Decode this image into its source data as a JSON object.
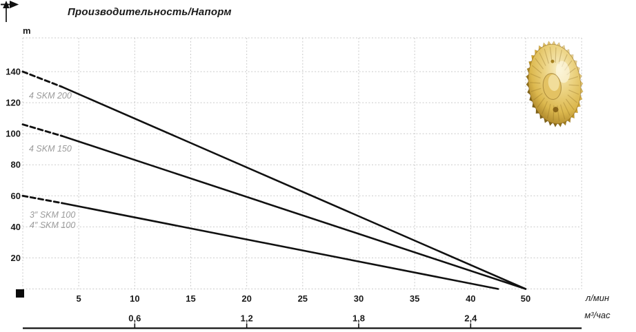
{
  "title": "Производительность/Напорм",
  "y_axis": {
    "unit_label": "m",
    "tick_labels": [
      "140",
      "120",
      "100",
      "80",
      "60",
      "40",
      "20"
    ]
  },
  "x_axis_primary": {
    "unit_label": "л/мин",
    "tick_labels": [
      "5",
      "10",
      "15",
      "20",
      "25",
      "30",
      "35",
      "40",
      "50"
    ]
  },
  "x_axis_secondary": {
    "unit_label": "м³/час",
    "tick_labels": [
      "0,6",
      "1,2",
      "1,8",
      "2,4"
    ]
  },
  "curve_labels": [
    "4 SKM 200",
    "4 SKM 150",
    "3″ SKM 100",
    "4″ SKM 100"
  ],
  "colors": {
    "curve": "#111111",
    "grid": "#c9c9c9",
    "curve_label_gray": "#9b9b9b",
    "text": "#1a1a1a",
    "axis_line": "#111111",
    "impeller_light": "#f8eec6",
    "impeller_mid": "#dcb84e",
    "impeller_dark": "#9b741d"
  },
  "chart_data": {
    "type": "line",
    "title": "Производительность/Напорм",
    "ylabel": "m",
    "xlabel_primary": "л/мин",
    "xlabel_secondary": "м³/час",
    "y_ticks": [
      140,
      120,
      100,
      80,
      60,
      40,
      20
    ],
    "x_ticks_l_min": [
      5,
      10,
      15,
      20,
      25,
      30,
      35,
      40,
      50
    ],
    "x_ticks_m3_h": [
      0.6,
      1.2,
      1.8,
      2.4
    ],
    "ylim_m": [
      0,
      160
    ],
    "grid": true,
    "series": [
      {
        "name": "4 SKM 200",
        "style": "dashed-then-solid",
        "dash_until_l_min": 3.5,
        "points_l_min_vs_m": [
          [
            0,
            140
          ],
          [
            50,
            0
          ]
        ]
      },
      {
        "name": "4 SKM 150",
        "style": "dashed-then-solid",
        "dash_until_l_min": 3.5,
        "points_l_min_vs_m": [
          [
            0,
            106
          ],
          [
            50,
            0
          ]
        ]
      },
      {
        "name": "3″ SKM 100 / 4″ SKM 100",
        "style": "dashed-then-solid",
        "dash_until_l_min": 3.5,
        "points_l_min_vs_m": [
          [
            0,
            60
          ],
          [
            45,
            0
          ]
        ]
      }
    ]
  }
}
